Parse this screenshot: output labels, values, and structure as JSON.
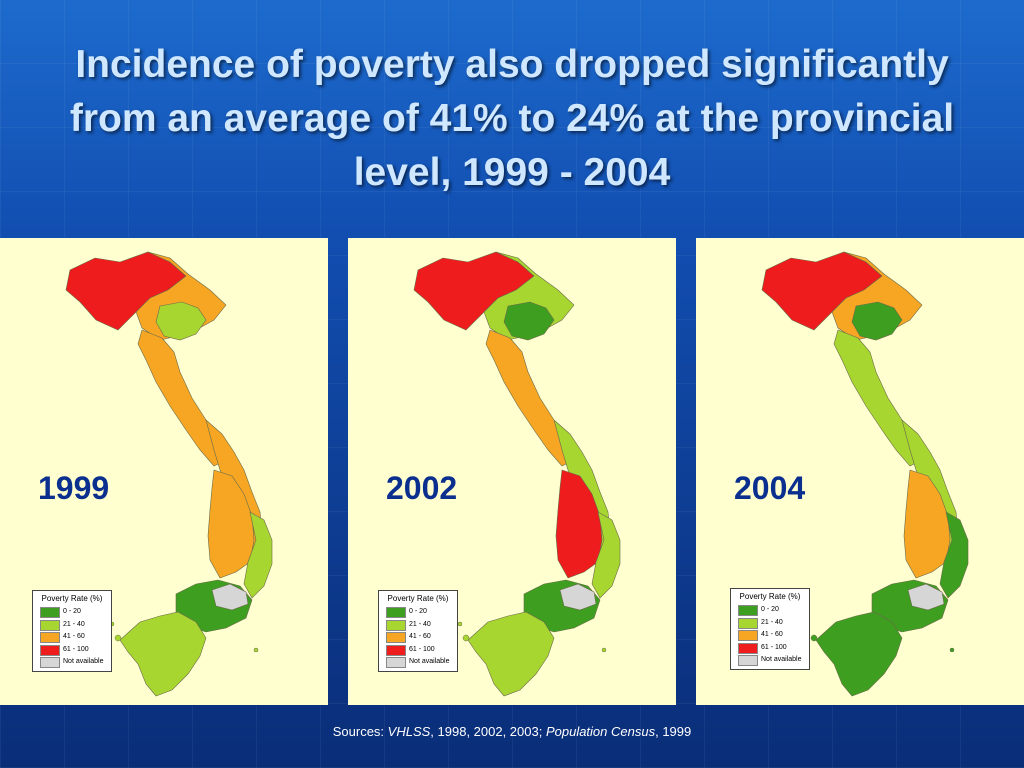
{
  "title": "Incidence of poverty also dropped significantly from an average of 41% to 24% at the provincial level, 1999 - 2004",
  "colors": {
    "c0_20": "#3d9e1f",
    "c21_40": "#a8d630",
    "c41_60": "#f6a623",
    "c61_100": "#ee1c1c",
    "not_available": "#d6d6d6",
    "title_text": "#cfe7ff",
    "year_text": "#0b2f8e",
    "panel_bg": "#ffffd0"
  },
  "legend": {
    "title": "Poverty Rate (%)",
    "items": [
      {
        "label": "0 - 20",
        "color": "#3d9e1f"
      },
      {
        "label": "21 - 40",
        "color": "#a8d630"
      },
      {
        "label": "41 - 60",
        "color": "#f6a623"
      },
      {
        "label": "61 - 100",
        "color": "#ee1c1c"
      },
      {
        "label": "Not available",
        "color": "#d6d6d6"
      }
    ]
  },
  "maps": [
    {
      "year": "1999",
      "regions": {
        "northwest": "61 - 100",
        "north_center": "41 - 60",
        "red_river_delta": "21 - 40",
        "north_central_coast": "41 - 60",
        "central_coast": "41 - 60",
        "central_highlands": "41 - 60",
        "south_central_coast": "21 - 40",
        "southeast": "0 - 20",
        "mekong_delta": "21 - 40",
        "hcmc_area": "Not available"
      }
    },
    {
      "year": "2002",
      "regions": {
        "northwest": "61 - 100",
        "north_center": "21 - 40",
        "red_river_delta": "0 - 20",
        "north_central_coast": "41 - 60",
        "central_coast": "21 - 40",
        "central_highlands": "61 - 100",
        "south_central_coast": "21 - 40",
        "southeast": "0 - 20",
        "mekong_delta": "21 - 40",
        "hcmc_area": "Not available"
      }
    },
    {
      "year": "2004",
      "regions": {
        "northwest": "61 - 100",
        "north_center": "41 - 60",
        "red_river_delta": "0 - 20",
        "north_central_coast": "21 - 40",
        "central_coast": "21 - 40",
        "central_highlands": "41 - 60",
        "south_central_coast": "0 - 20",
        "southeast": "0 - 20",
        "mekong_delta": "0 - 20",
        "hcmc_area": "Not available"
      }
    }
  ],
  "sources": {
    "prefix": "Sources: ",
    "survey": "VHLSS",
    "survey_years": ", 1998, 2002, 2003; ",
    "census": "Population Census",
    "census_year": ", 1999"
  }
}
